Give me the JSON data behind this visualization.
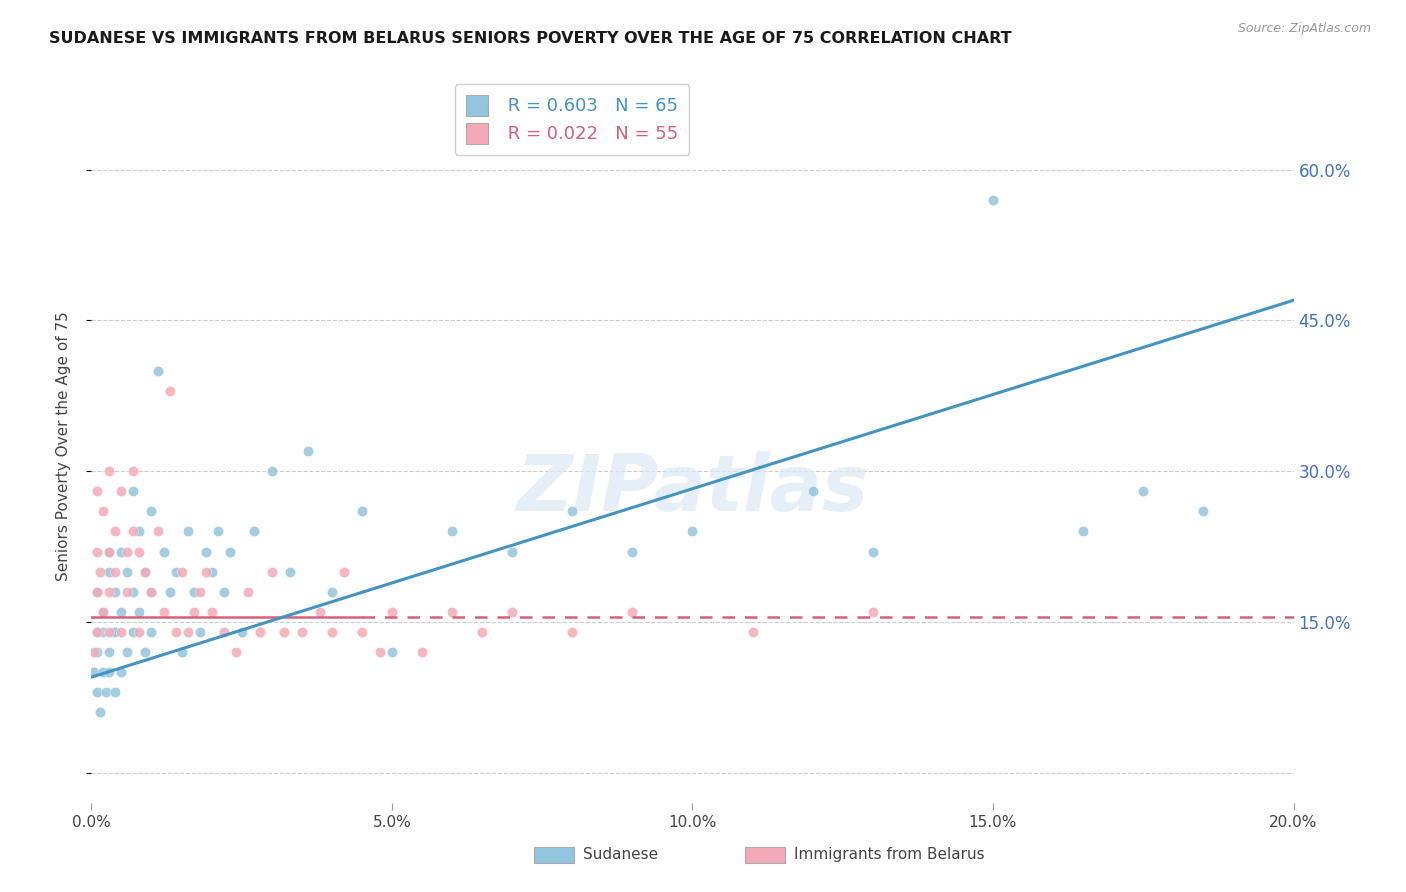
{
  "title": "SUDANESE VS IMMIGRANTS FROM BELARUS SENIORS POVERTY OVER THE AGE OF 75 CORRELATION CHART",
  "source": "Source: ZipAtlas.com",
  "ylabel": "Seniors Poverty Over the Age of 75",
  "series1_name": "Sudanese",
  "series1_R": "0.603",
  "series1_N": "65",
  "series1_color": "#92c5de",
  "series1_line_color": "#4393c3",
  "series2_name": "Immigrants from Belarus",
  "series2_R": "0.022",
  "series2_N": "55",
  "series2_color": "#f4a9b8",
  "series2_line_color": "#d6607a",
  "xmin": 0.0,
  "xmax": 0.2,
  "ymin": -0.03,
  "ymax": 0.68,
  "yticks": [
    0.0,
    0.15,
    0.3,
    0.45,
    0.6
  ],
  "xticks": [
    0.0,
    0.05,
    0.1,
    0.15,
    0.2
  ],
  "background_color": "#ffffff",
  "watermark": "ZIPatlas",
  "sudanese_x": [
    0.0005,
    0.001,
    0.001,
    0.001,
    0.001,
    0.0015,
    0.002,
    0.002,
    0.002,
    0.0025,
    0.003,
    0.003,
    0.003,
    0.003,
    0.0035,
    0.004,
    0.004,
    0.004,
    0.005,
    0.005,
    0.005,
    0.006,
    0.006,
    0.007,
    0.007,
    0.007,
    0.008,
    0.008,
    0.009,
    0.009,
    0.01,
    0.01,
    0.01,
    0.011,
    0.012,
    0.013,
    0.014,
    0.015,
    0.016,
    0.017,
    0.018,
    0.019,
    0.02,
    0.021,
    0.022,
    0.023,
    0.025,
    0.027,
    0.03,
    0.033,
    0.036,
    0.04,
    0.045,
    0.05,
    0.06,
    0.07,
    0.08,
    0.09,
    0.1,
    0.12,
    0.13,
    0.15,
    0.165,
    0.175,
    0.185
  ],
  "sudanese_y": [
    0.1,
    0.08,
    0.12,
    0.14,
    0.18,
    0.06,
    0.1,
    0.14,
    0.16,
    0.08,
    0.1,
    0.12,
    0.2,
    0.22,
    0.14,
    0.08,
    0.14,
    0.18,
    0.1,
    0.16,
    0.22,
    0.12,
    0.2,
    0.14,
    0.18,
    0.28,
    0.16,
    0.24,
    0.12,
    0.2,
    0.14,
    0.18,
    0.26,
    0.4,
    0.22,
    0.18,
    0.2,
    0.12,
    0.24,
    0.18,
    0.14,
    0.22,
    0.2,
    0.24,
    0.18,
    0.22,
    0.14,
    0.24,
    0.3,
    0.2,
    0.32,
    0.18,
    0.26,
    0.12,
    0.24,
    0.22,
    0.26,
    0.22,
    0.24,
    0.28,
    0.22,
    0.57,
    0.24,
    0.28,
    0.26
  ],
  "belarus_x": [
    0.0005,
    0.001,
    0.001,
    0.001,
    0.001,
    0.0015,
    0.002,
    0.002,
    0.003,
    0.003,
    0.003,
    0.003,
    0.004,
    0.004,
    0.005,
    0.005,
    0.006,
    0.006,
    0.007,
    0.007,
    0.008,
    0.008,
    0.009,
    0.01,
    0.011,
    0.012,
    0.013,
    0.014,
    0.015,
    0.016,
    0.017,
    0.018,
    0.019,
    0.02,
    0.022,
    0.024,
    0.026,
    0.028,
    0.03,
    0.032,
    0.035,
    0.038,
    0.04,
    0.042,
    0.045,
    0.048,
    0.05,
    0.055,
    0.06,
    0.065,
    0.07,
    0.08,
    0.09,
    0.11,
    0.13
  ],
  "belarus_y": [
    0.12,
    0.14,
    0.18,
    0.22,
    0.28,
    0.2,
    0.16,
    0.26,
    0.14,
    0.22,
    0.3,
    0.18,
    0.24,
    0.2,
    0.14,
    0.28,
    0.22,
    0.18,
    0.24,
    0.3,
    0.14,
    0.22,
    0.2,
    0.18,
    0.24,
    0.16,
    0.38,
    0.14,
    0.2,
    0.14,
    0.16,
    0.18,
    0.2,
    0.16,
    0.14,
    0.12,
    0.18,
    0.14,
    0.2,
    0.14,
    0.14,
    0.16,
    0.14,
    0.2,
    0.14,
    0.12,
    0.16,
    0.12,
    0.16,
    0.14,
    0.16,
    0.14,
    0.16,
    0.14,
    0.16
  ]
}
